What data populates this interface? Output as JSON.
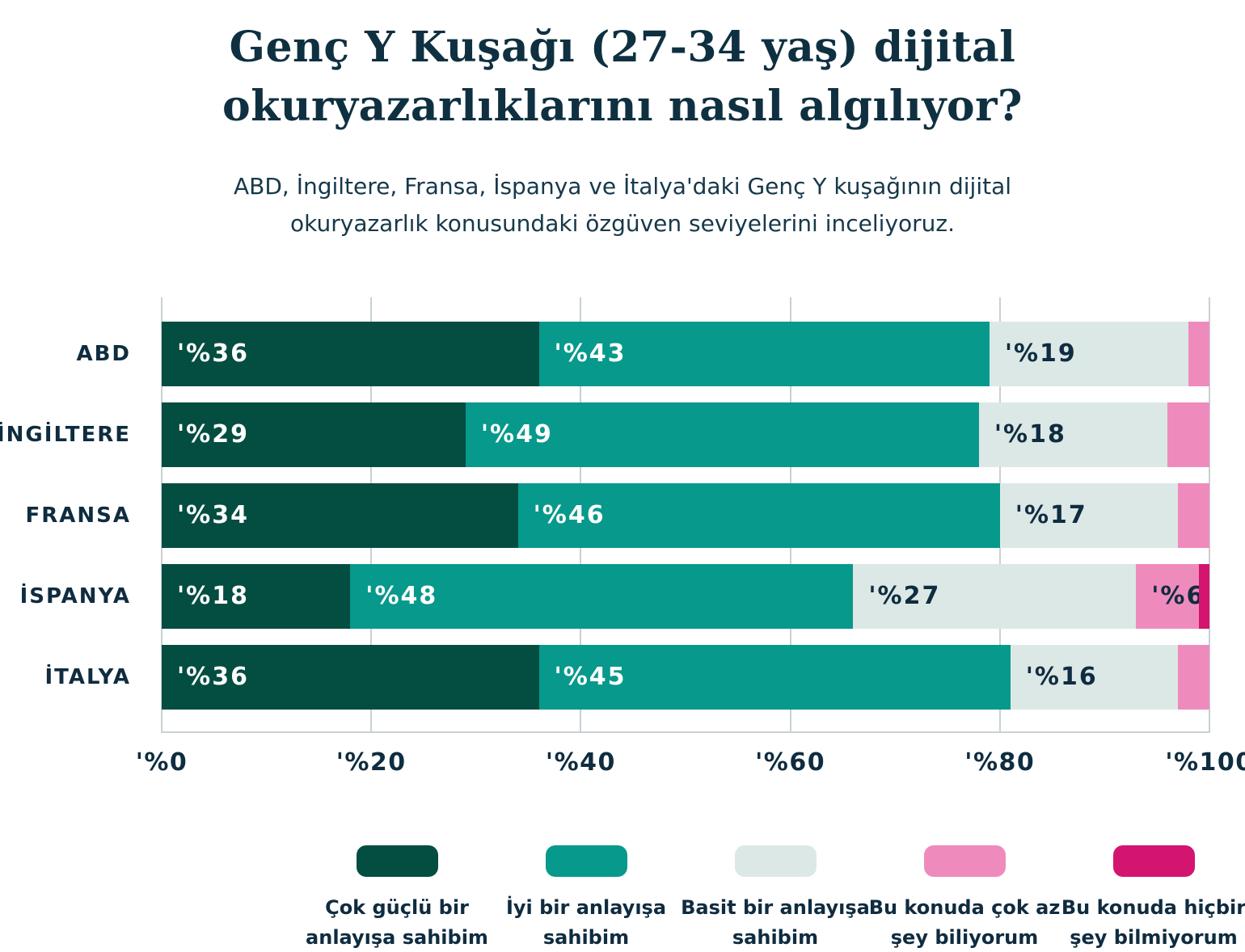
{
  "title": {
    "line1": "Genç Y Kuşağı (27-34 yaş) dijital",
    "line2": "okuryazarlıklarını nasıl algılıyor?"
  },
  "subtitle": {
    "line1": "ABD, İngiltere, Fransa, İspanya ve İtalya'daki Genç Y kuşağının dijital",
    "line2": "okuryazarlık konusundaki özgüven seviyelerini inceliyoruz."
  },
  "chart_data": {
    "type": "bar",
    "orientation": "horizontal-stacked",
    "title": "Genç Y Kuşağı (27-34 yaş) dijital okuryazarlıklarını nasıl algılıyor?",
    "categories": [
      "ABD",
      "İNGİLTERE",
      "FRANSA",
      "İSPANYA",
      "İTALYA"
    ],
    "series": [
      {
        "name": "Çok güçlü bir anlayışa sahibim",
        "color": "#044d41",
        "label_color": "#ffffff",
        "values": [
          36,
          29,
          34,
          18,
          36
        ]
      },
      {
        "name": "İyi bir anlayışa sahibim",
        "color": "#07998b",
        "label_color": "#ffffff",
        "values": [
          43,
          49,
          46,
          48,
          45
        ]
      },
      {
        "name": "Basit bir anlayışa sahibim",
        "color": "#dce8e6",
        "label_color": "#0f2c40",
        "values": [
          19,
          18,
          17,
          27,
          16
        ]
      },
      {
        "name": "Bu konuda çok az şey biliyorum",
        "color": "#ef8bbc",
        "label_color": "#0f2c40",
        "values": [
          2,
          4,
          3,
          6,
          3
        ]
      },
      {
        "name": "Bu konuda hiçbir şey bilmiyorum",
        "color": "#d31570",
        "label_color": "#0f2c40",
        "values": [
          0,
          0,
          0,
          1,
          0
        ]
      }
    ],
    "value_label_prefix": "'%",
    "value_label_min": 5,
    "x_ticks": [
      {
        "label": "'%0",
        "value": 0
      },
      {
        "label": "'%20",
        "value": 20
      },
      {
        "label": "'%40",
        "value": 40
      },
      {
        "label": "'%60",
        "value": 60
      },
      {
        "label": "'%80",
        "value": 80
      },
      {
        "label": "'%100",
        "value": 100
      }
    ],
    "xlim": [
      0,
      100
    ],
    "grid": "vertical",
    "legend_position": "bottom"
  },
  "legend": {
    "items": [
      {
        "lines": [
          "Çok güçlü bir",
          "anlayışa sahibim"
        ],
        "color": "#044d41"
      },
      {
        "lines": [
          "İyi bir anlayışa",
          "sahibim"
        ],
        "color": "#07998b"
      },
      {
        "lines": [
          "Basit bir anlayışa",
          "sahibim"
        ],
        "color": "#dce8e6"
      },
      {
        "lines": [
          "Bu konuda çok az",
          "şey biliyorum"
        ],
        "color": "#ef8bbc"
      },
      {
        "lines": [
          "Bu konuda hiçbir",
          "şey bilmiyorum"
        ],
        "color": "#d31570"
      }
    ]
  },
  "colors": {
    "background": "#ffffff",
    "title_text": "#0f3040",
    "subtitle_text": "#16384a",
    "axis_text": "#0f2c40",
    "gridline": "#c8d1d3"
  }
}
